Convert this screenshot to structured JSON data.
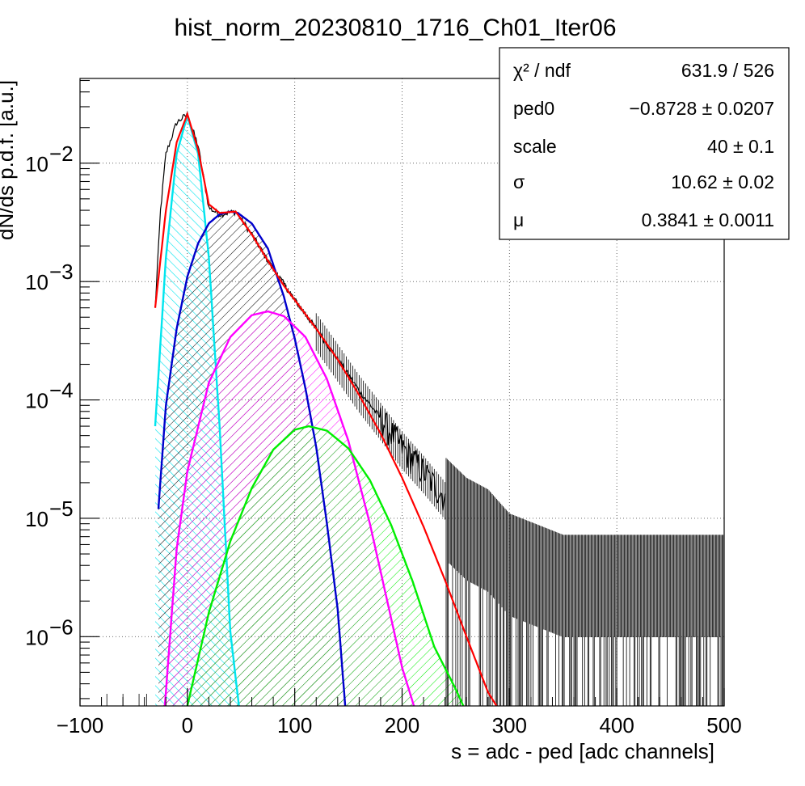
{
  "chart_data": {
    "type": "line",
    "title": "hist_norm_20230810_1716_Ch01_Iter06",
    "xlabel": "s = adc - ped [adc channels]",
    "ylabel": "dN/ds p.d.f. [a.u.]",
    "xlim": [
      -100,
      500
    ],
    "ylim": [
      2.6e-07,
      0.052
    ],
    "yscale": "log",
    "grid": true,
    "x_ticks": [
      -100,
      0,
      100,
      200,
      300,
      400,
      500
    ],
    "x_tick_labels": [
      "−100",
      "0",
      "100",
      "200",
      "300",
      "400",
      "500"
    ],
    "y_ticks": [
      {
        "value": 1e-06,
        "mantissa": "10",
        "exp": "−6"
      },
      {
        "value": 1e-05,
        "mantissa": "10",
        "exp": "−5"
      },
      {
        "value": 0.0001,
        "mantissa": "10",
        "exp": "−4"
      },
      {
        "value": 0.001,
        "mantissa": "10",
        "exp": "−3"
      },
      {
        "value": 0.01,
        "mantissa": "10",
        "exp": "−2"
      }
    ],
    "series": [
      {
        "type": "histogram",
        "color": "#000000",
        "x": [
          -30,
          -25,
          -20,
          -10,
          0,
          10,
          20,
          30,
          45,
          60,
          75,
          90,
          100,
          120,
          140,
          160,
          180,
          200,
          220,
          240,
          260,
          280,
          300,
          350,
          400,
          450,
          500
        ],
        "values": [
          0.0006,
          0.004,
          0.012,
          0.022,
          0.026,
          0.014,
          0.0042,
          0.0037,
          0.0039,
          0.0025,
          0.0015,
          0.00095,
          0.0007,
          0.0004,
          0.00022,
          0.00012,
          7e-05,
          4e-05,
          2.5e-05,
          1.5e-05,
          1e-05,
          8e-06,
          5e-06,
          3.3e-06,
          3.3e-06,
          3.3e-06,
          3.3e-06
        ]
      },
      {
        "type": "fit_total",
        "color": "#ff0000",
        "x": [
          -30,
          -20,
          -10,
          0,
          10,
          20,
          30,
          45,
          60,
          75,
          90,
          100,
          120,
          140,
          160,
          180,
          200,
          220,
          240,
          260,
          280,
          288
        ],
        "values": [
          0.0006,
          0.004,
          0.015,
          0.026,
          0.013,
          0.0045,
          0.0038,
          0.0039,
          0.0025,
          0.0015,
          0.00092,
          0.0007,
          0.0004,
          0.00022,
          0.00011,
          5.2e-05,
          2.2e-05,
          8.5e-06,
          3e-06,
          1e-06,
          3.4e-07,
          2.6e-07
        ]
      },
      {
        "type": "component",
        "color": "#00e5ee",
        "fill": "hatch",
        "x": [
          -30,
          -20,
          -10,
          0,
          10,
          20,
          30,
          40,
          48
        ],
        "values": [
          6e-05,
          0.0016,
          0.012,
          0.0252,
          0.012,
          0.0016,
          6e-05,
          1.1e-06,
          2.6e-07
        ]
      },
      {
        "type": "component",
        "color": "#0000cc",
        "fill": "hatch",
        "x": [
          -27,
          -20,
          -10,
          0,
          10,
          20,
          30,
          40,
          47,
          60,
          75,
          90,
          100,
          110,
          120,
          130,
          140,
          147
        ],
        "values": [
          1.2e-05,
          9e-05,
          0.0004,
          0.0011,
          0.0021,
          0.0031,
          0.0037,
          0.0039,
          0.0038,
          0.0031,
          0.0019,
          0.00074,
          0.00033,
          0.000125,
          4e-05,
          9e-06,
          1.7e-06,
          2.6e-07
        ]
      },
      {
        "type": "component",
        "color": "#ff00ff",
        "fill": "hatch",
        "x": [
          -21,
          -10,
          0,
          20,
          40,
          60,
          75,
          90,
          110,
          130,
          150,
          170,
          190,
          200,
          211
        ],
        "values": [
          2.6e-07,
          5.5e-06,
          2.5e-05,
          0.00014,
          0.00034,
          0.00052,
          0.00056,
          0.00051,
          0.00034,
          0.00015,
          4.5e-05,
          9e-06,
          1.4e-06,
          5.5e-07,
          2.6e-07
        ]
      },
      {
        "type": "component",
        "color": "#00ee00",
        "fill": "hatch",
        "x": [
          0,
          20,
          40,
          60,
          80,
          100,
          113,
          130,
          150,
          170,
          190,
          210,
          230,
          250,
          257
        ],
        "values": [
          2.6e-07,
          1.6e-06,
          6.4e-06,
          1.8e-05,
          3.8e-05,
          5.6e-05,
          6e-05,
          5.5e-05,
          3.9e-05,
          2.1e-05,
          8.7e-06,
          2.9e-06,
          8.2e-07,
          3.6e-07,
          2.6e-07
        ]
      }
    ]
  },
  "stats_box": {
    "rows": [
      {
        "label": "χ² / ndf",
        "value": "631.9 / 526"
      },
      {
        "label": "ped0",
        "value": "−0.8728 ± 0.0207"
      },
      {
        "label": "scale",
        "value": "40 ± 0.1"
      },
      {
        "label": "σ",
        "value": "10.62 ± 0.02"
      },
      {
        "label": "μ",
        "value": "0.3841 ± 0.0011"
      }
    ]
  }
}
